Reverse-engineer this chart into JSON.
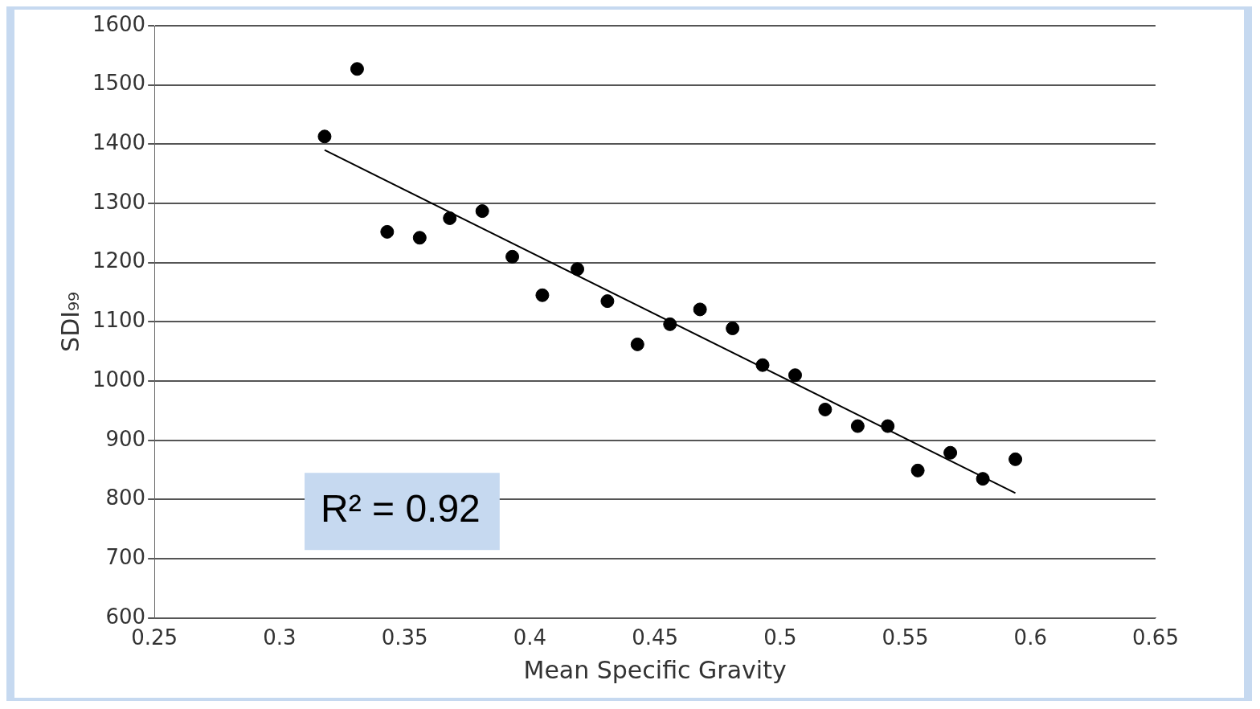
{
  "chart_data": {
    "type": "scatter",
    "xlabel": "Mean Specific Gravity",
    "ylabel": "SDI₉₉",
    "xlim": [
      0.25,
      0.65
    ],
    "xticks": [
      0.25,
      0.3,
      0.35,
      0.4,
      0.45,
      0.5,
      0.55,
      0.6,
      0.65
    ],
    "ylim": [
      600,
      1600
    ],
    "yticks": [
      600,
      700,
      800,
      900,
      1000,
      1100,
      1200,
      1300,
      1400,
      1500,
      1600
    ],
    "grid": "y",
    "marker": "circle",
    "annotations": [
      "R² = 0.92"
    ],
    "series": [
      {
        "type": "scatter",
        "color": "#000000",
        "x": [
          0.318,
          0.331,
          0.343,
          0.356,
          0.368,
          0.381,
          0.393,
          0.405,
          0.419,
          0.431,
          0.443,
          0.456,
          0.468,
          0.481,
          0.493,
          0.506,
          0.518,
          0.531,
          0.543,
          0.555,
          0.568,
          0.581,
          0.594
        ],
        "values": [
          1413,
          1527,
          1252,
          1242,
          1275,
          1287,
          1210,
          1145,
          1189,
          1135,
          1062,
          1096,
          1121,
          1089,
          1027,
          1010,
          952,
          924,
          924,
          849,
          879,
          835,
          868
        ]
      },
      {
        "type": "line",
        "color": "#000000",
        "marker": "none",
        "x": [
          0.318,
          0.594
        ],
        "values": [
          1390,
          811
        ]
      }
    ]
  }
}
